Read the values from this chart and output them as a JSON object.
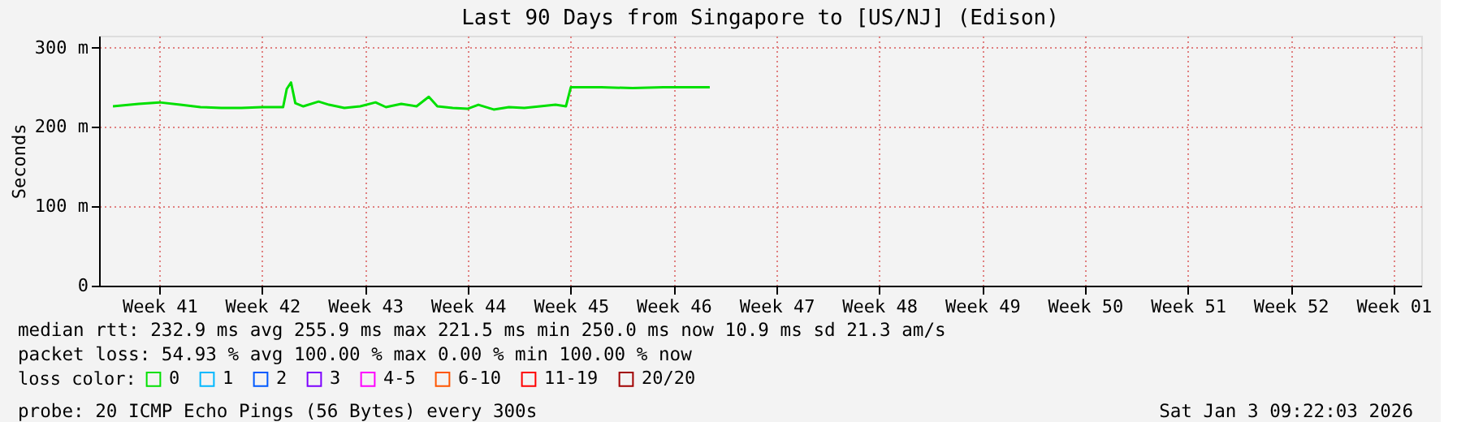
{
  "chart_data": {
    "type": "line",
    "title": "Last 90 Days from Singapore to [US/NJ] (Edison)",
    "ylabel": "Seconds",
    "x": [
      "2025-10-06T08:00",
      "2025-10-08T02:00",
      "2025-10-09T12:00",
      "2025-10-10T22:00",
      "2025-10-12T07:00",
      "2025-10-13T17:00",
      "2025-10-15T02:00",
      "2025-10-16T12:00",
      "2025-10-17T22:00",
      "2025-10-18T04:00",
      "2025-10-18T11:00",
      "2025-10-18T18:00",
      "2025-10-19T07:00",
      "2025-10-20T08:00",
      "2025-10-21T01:00",
      "2025-10-22T02:00",
      "2025-10-23T04:00",
      "2025-10-24T05:00",
      "2025-10-24T22:00",
      "2025-10-25T23:00",
      "2025-10-27T00:00",
      "2025-10-27T20:00",
      "2025-10-28T10:00",
      "2025-10-29T11:00",
      "2025-10-30T12:00",
      "2025-10-31T05:00",
      "2025-11-01T06:00",
      "2025-11-02T07:00",
      "2025-11-03T08:00",
      "2025-11-04T10:00",
      "2025-11-05T11:00",
      "2025-11-06T04:00",
      "2025-11-06T12:00",
      "2025-11-08T14:00",
      "2025-11-10T17:00",
      "2025-11-12T19:00",
      "2025-11-15T23:00"
    ],
    "series": [
      {
        "name": "0",
        "color": "#00e000",
        "values": [
          226,
          229,
          231,
          228,
          225,
          224,
          224,
          225,
          225,
          248,
          256,
          230,
          226,
          232,
          228,
          224,
          226,
          231,
          225,
          229,
          226,
          238,
          226,
          224,
          223,
          228,
          222,
          225,
          224,
          226,
          228,
          226,
          250,
          250,
          249,
          250,
          250
        ]
      },
      {
        "name": "1",
        "color": "#00b8ff",
        "values": [
          null,
          null,
          null,
          null,
          null,
          null,
          null,
          null,
          null,
          null,
          null,
          null,
          null,
          null,
          null,
          null,
          null,
          null,
          null,
          null,
          null,
          null,
          null,
          null,
          null,
          null,
          null,
          null,
          null,
          null,
          null,
          null,
          null,
          null,
          null,
          null,
          null
        ]
      },
      {
        "name": "2",
        "color": "#0059ff",
        "values": [
          null,
          null,
          null,
          null,
          null,
          null,
          null,
          null,
          null,
          null,
          null,
          null,
          null,
          null,
          null,
          null,
          null,
          null,
          null,
          null,
          null,
          null,
          null,
          null,
          null,
          null,
          null,
          null,
          null,
          null,
          null,
          null,
          null,
          null,
          null,
          null,
          null
        ]
      },
      {
        "name": "3",
        "color": "#7e00ff",
        "values": [
          null,
          null,
          null,
          null,
          null,
          null,
          null,
          null,
          null,
          null,
          null,
          null,
          null,
          null,
          null,
          null,
          null,
          null,
          null,
          null,
          null,
          null,
          null,
          null,
          null,
          null,
          null,
          null,
          null,
          null,
          null,
          null,
          null,
          null,
          null,
          null,
          null
        ]
      },
      {
        "name": "4-5",
        "color": "#ff00ff",
        "values": [
          null,
          null,
          null,
          null,
          null,
          null,
          null,
          null,
          null,
          null,
          null,
          null,
          null,
          null,
          null,
          null,
          null,
          null,
          null,
          null,
          null,
          null,
          null,
          null,
          null,
          null,
          null,
          null,
          null,
          null,
          null,
          null,
          null,
          null,
          null,
          null,
          null
        ]
      },
      {
        "name": "6-10",
        "color": "#ff5500",
        "values": [
          null,
          null,
          null,
          null,
          null,
          null,
          null,
          null,
          null,
          null,
          null,
          null,
          null,
          null,
          null,
          null,
          null,
          null,
          null,
          null,
          null,
          null,
          null,
          null,
          null,
          null,
          null,
          null,
          null,
          null,
          null,
          null,
          null,
          null,
          null,
          null,
          null
        ]
      },
      {
        "name": "11-19",
        "color": "#ff0000",
        "values": [
          null,
          null,
          null,
          null,
          null,
          null,
          null,
          null,
          null,
          null,
          null,
          null,
          null,
          null,
          null,
          null,
          null,
          null,
          null,
          null,
          null,
          null,
          null,
          null,
          null,
          null,
          null,
          null,
          null,
          null,
          null,
          null,
          null,
          null,
          null,
          null,
          null
        ]
      },
      {
        "name": "20/20",
        "color": "#a10000",
        "values": [
          null,
          null,
          null,
          null,
          null,
          null,
          null,
          null,
          null,
          null,
          null,
          null,
          null,
          null,
          null,
          null,
          null,
          null,
          null,
          null,
          null,
          null,
          null,
          null,
          null,
          null,
          null,
          null,
          null,
          null,
          null,
          null,
          null,
          null,
          null,
          null,
          null
        ]
      }
    ],
    "legend_title": "loss color:",
    "legend": "bottom left",
    "xlim": [
      "2025-10-05T09:22",
      "2026-01-03T09:22"
    ],
    "xticks": [
      {
        "value": "2025-10-09T12:00",
        "label": "Week 41"
      },
      {
        "value": "2025-10-16T12:00",
        "label": "Week 42"
      },
      {
        "value": "2025-10-23T12:00",
        "label": "Week 43"
      },
      {
        "value": "2025-10-30T12:00",
        "label": "Week 44"
      },
      {
        "value": "2025-11-06T12:00",
        "label": "Week 45"
      },
      {
        "value": "2025-11-13T12:00",
        "label": "Week 46"
      },
      {
        "value": "2025-11-20T12:00",
        "label": "Week 47"
      },
      {
        "value": "2025-11-27T12:00",
        "label": "Week 48"
      },
      {
        "value": "2025-12-04T12:00",
        "label": "Week 49"
      },
      {
        "value": "2025-12-11T12:00",
        "label": "Week 50"
      },
      {
        "value": "2025-12-18T12:00",
        "label": "Week 51"
      },
      {
        "value": "2025-12-25T12:00",
        "label": "Week 52"
      },
      {
        "value": "2026-01-01T12:00",
        "label": "Week 01"
      }
    ],
    "ylim": [
      0,
      315
    ],
    "yticks": [
      0,
      {
        "value": 100,
        "label": "100 m"
      },
      {
        "value": 200,
        "label": "200 m"
      },
      {
        "value": 300,
        "label": "300 m"
      }
    ],
    "grid": true,
    "marker": "none",
    "line_style": "solid",
    "annotations": [
      "median rtt:  232.9 ms avg  255.9 ms max  221.5 ms min  250.0 ms now  10.9 ms sd  21.3   am/s",
      "packet loss: 54.93 % avg  100.00 % max  0.00 % min  100.00 % now",
      "probe:       20 ICMP Echo Pings (56 Bytes) every 300s",
      "Sat Jan  3 09:22:03 2026"
    ]
  }
}
